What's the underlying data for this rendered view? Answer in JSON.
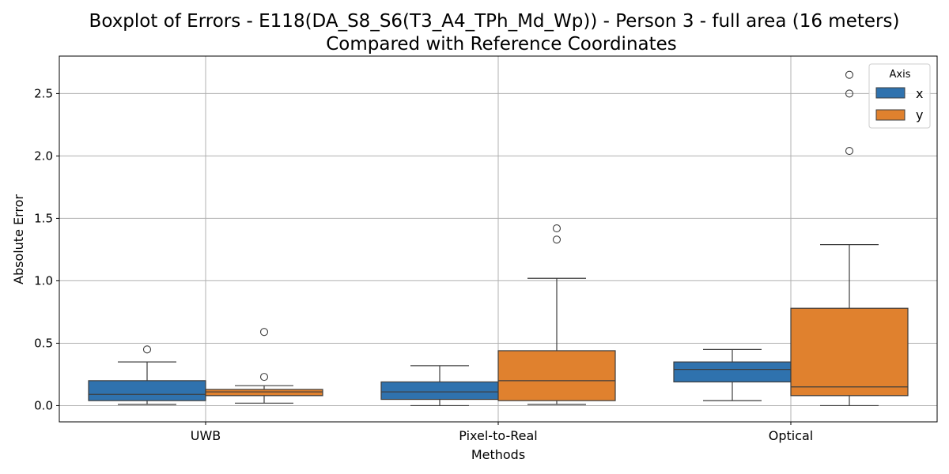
{
  "chart_data": {
    "type": "boxplot",
    "title_line1": "Boxplot of Errors - E118(DA_S8_S6(T3_A4_TPh_Md_Wp)) - Person 3 - full area (16 meters)",
    "title_line2": "Compared with Reference Coordinates",
    "xlabel": "Methods",
    "ylabel": "Absolute Error",
    "ylim": [
      -0.13,
      2.8
    ],
    "yticks": [
      0.0,
      0.5,
      1.0,
      1.5,
      2.0,
      2.5
    ],
    "ytick_labels": [
      "0.0",
      "0.5",
      "1.0",
      "1.5",
      "2.0",
      "2.5"
    ],
    "categories": [
      "UWB",
      "Pixel-to-Real",
      "Optical"
    ],
    "grid": true,
    "legend": {
      "title": "Axis",
      "position": "top-right"
    },
    "series": [
      {
        "name": "x",
        "color": "#2f72ae",
        "boxes": [
          {
            "whisker_low": 0.01,
            "q1": 0.04,
            "median": 0.09,
            "q3": 0.2,
            "whisker_high": 0.35,
            "outliers": [
              0.45
            ]
          },
          {
            "whisker_low": 0.0,
            "q1": 0.05,
            "median": 0.11,
            "q3": 0.19,
            "whisker_high": 0.32,
            "outliers": []
          },
          {
            "whisker_low": 0.04,
            "q1": 0.19,
            "median": 0.29,
            "q3": 0.35,
            "whisker_high": 0.45,
            "outliers": []
          }
        ]
      },
      {
        "name": "y",
        "color": "#e0812e",
        "boxes": [
          {
            "whisker_low": 0.02,
            "q1": 0.08,
            "median": 0.11,
            "q3": 0.13,
            "whisker_high": 0.16,
            "outliers": [
              0.23,
              0.59
            ]
          },
          {
            "whisker_low": 0.01,
            "q1": 0.04,
            "median": 0.2,
            "q3": 0.44,
            "whisker_high": 1.02,
            "outliers": [
              1.33,
              1.42
            ]
          },
          {
            "whisker_low": 0.0,
            "q1": 0.08,
            "median": 0.15,
            "q3": 0.78,
            "whisker_high": 1.29,
            "outliers": [
              2.04,
              2.5,
              2.65
            ]
          }
        ]
      }
    ]
  }
}
